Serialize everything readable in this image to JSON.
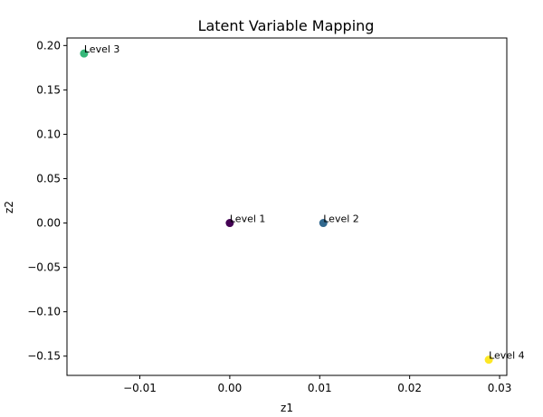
{
  "chart_data": {
    "type": "scatter",
    "title": "Latent Variable Mapping",
    "xlabel": "z1",
    "ylabel": "z2",
    "xlim": [
      -0.0181,
      0.0308
    ],
    "ylim": [
      -0.1717,
      0.2085
    ],
    "xticks": [
      -0.01,
      0.0,
      0.01,
      0.02,
      0.03
    ],
    "xtick_labels": [
      "−0.01",
      "0.00",
      "0.01",
      "0.02",
      "0.03"
    ],
    "yticks": [
      -0.15,
      -0.1,
      -0.05,
      0.0,
      0.05,
      0.1,
      0.15,
      0.2
    ],
    "ytick_labels": [
      "−0.15",
      "−0.10",
      "−0.05",
      "0.00",
      "0.05",
      "0.10",
      "0.15",
      "0.20"
    ],
    "grid": false,
    "points": [
      {
        "label": "Level 1",
        "x": 0.0,
        "y": 0.0,
        "color": "#440154"
      },
      {
        "label": "Level 2",
        "x": 0.0104,
        "y": 0.0,
        "color": "#31688e"
      },
      {
        "label": "Level 3",
        "x": -0.0162,
        "y": 0.191,
        "color": "#35b779"
      },
      {
        "label": "Level 4",
        "x": 0.0288,
        "y": -0.154,
        "color": "#fde725"
      }
    ]
  }
}
